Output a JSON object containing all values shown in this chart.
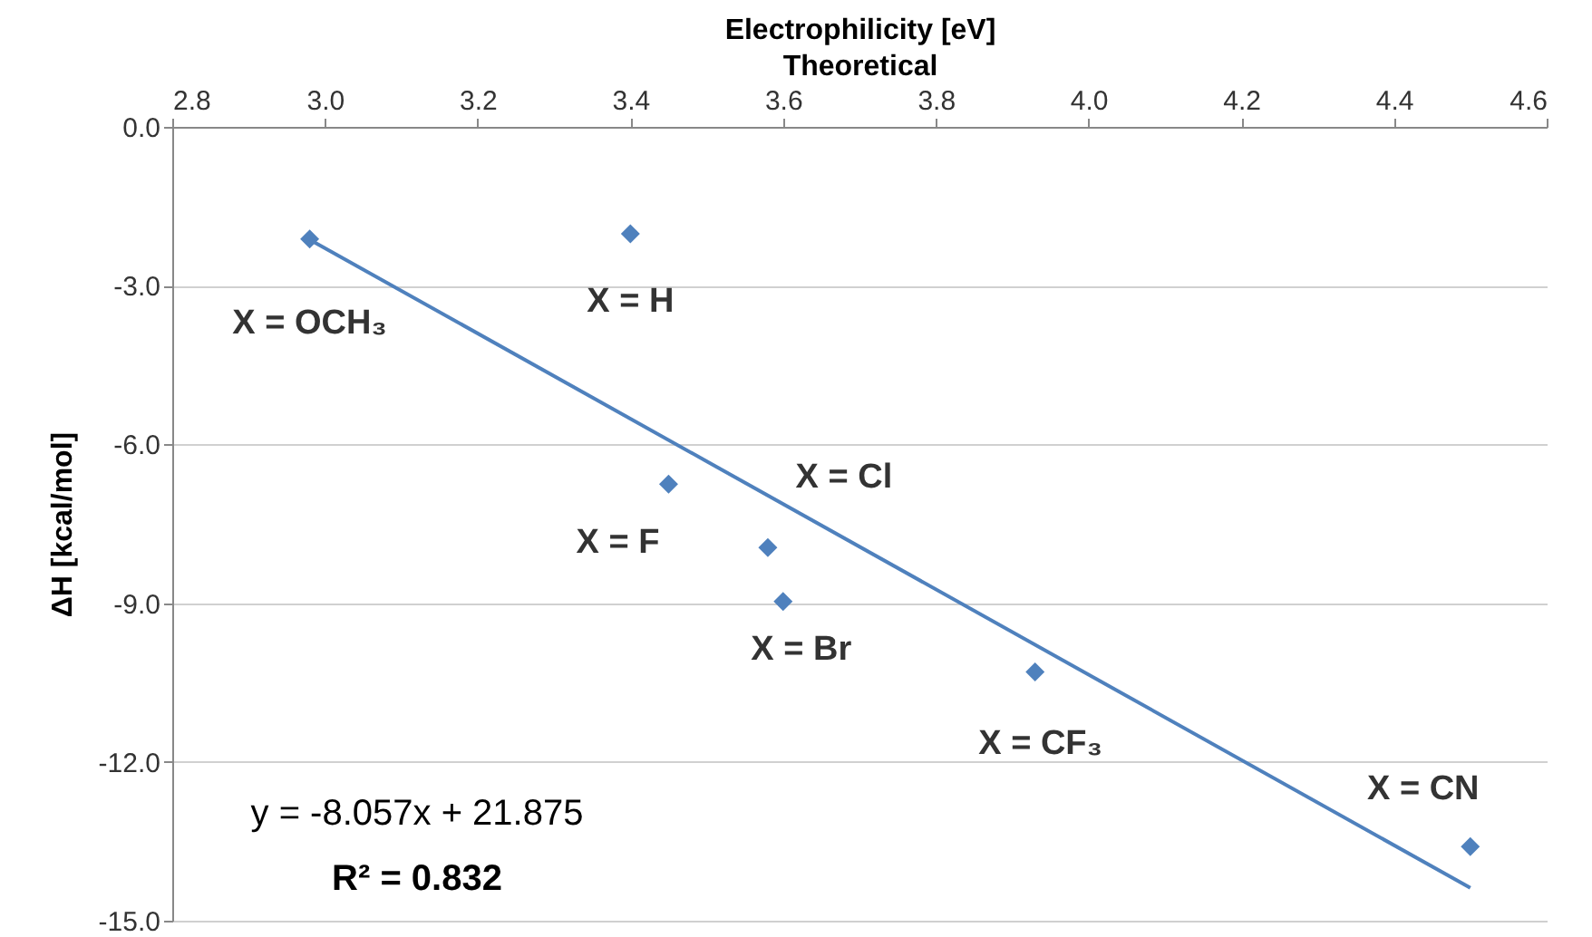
{
  "chart_data": {
    "type": "scatter",
    "xlabel": "Electrophilicity [eV]\nTheoretical",
    "ylabel": "ΔH [kcal/mol]",
    "xlim": [
      2.8,
      4.6
    ],
    "xticks": [
      2.8,
      {
        "value": 3,
        "label": "3.0"
      },
      3.2,
      3.4,
      3.6,
      3.8,
      {
        "value": 4,
        "label": "4.0"
      },
      4.2,
      4.4,
      4.6
    ],
    "ylim": [
      -15,
      0
    ],
    "yticks": [
      {
        "value": 0,
        "label": "0.0"
      },
      {
        "value": -3,
        "label": "-3.0"
      },
      {
        "value": -6,
        "label": "-6.0"
      },
      {
        "value": -9,
        "label": "-9.0"
      },
      {
        "value": -12,
        "label": "-12.0"
      },
      {
        "value": -15,
        "label": "-15.0"
      }
    ],
    "grid": "y",
    "marker": "diamond",
    "series": [
      {
        "color": "#4f81bd",
        "x": [
          2.98,
          3.4,
          3.45,
          3.58,
          3.6,
          3.93,
          4.5
        ],
        "values": [
          -2.12,
          -2.02,
          -6.75,
          -7.95,
          -8.97,
          -10.3,
          -13.6
        ]
      },
      {
        "type": "line",
        "marker": "none",
        "color": "#4f81bd",
        "x": [
          2.98,
          4.5
        ],
        "values": [
          -2.13,
          -14.38
        ]
      }
    ],
    "annotations": [
      {
        "text": "X = OCH₃",
        "x": 2.98,
        "y": -2.12
      },
      {
        "text": "X = H",
        "x": 3.4,
        "y": -2.02
      },
      {
        "text": "X = F",
        "x": 3.45,
        "y": -6.75
      },
      {
        "text": "X = Cl",
        "x": 3.58,
        "y": -7.95
      },
      {
        "text": "X = Br",
        "x": 3.6,
        "y": -8.97
      },
      {
        "text": "X = CF₃",
        "x": 3.93,
        "y": -10.3
      },
      {
        "text": "X = CN",
        "x": 4.5,
        "y": -13.6
      },
      "y = -8.057x + 21.875",
      "R² = 0.832"
    ]
  }
}
